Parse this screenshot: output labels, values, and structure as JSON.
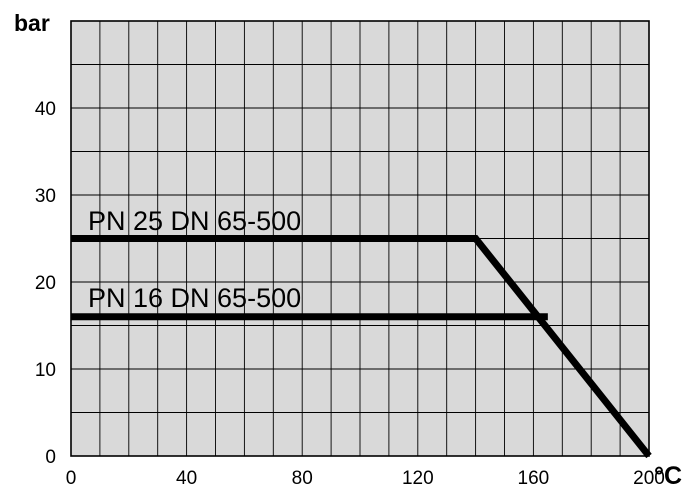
{
  "chart_data": {
    "type": "line",
    "xlabel": "°C",
    "ylabel": "bar",
    "xlim": [
      0,
      200
    ],
    "ylim": [
      0,
      50
    ],
    "x_ticks": [
      0,
      40,
      80,
      120,
      160,
      200
    ],
    "y_ticks": [
      0,
      10,
      20,
      30,
      40
    ],
    "x_tick_labels": [
      "0",
      "40",
      "80",
      "120",
      "160",
      "200"
    ],
    "y_tick_labels": [
      "0",
      "10",
      "20",
      "30",
      "40"
    ],
    "grid": true,
    "x_minor_step": 10,
    "y_minor_step": 5,
    "series": [
      {
        "name": "PN 25  DN 65-500",
        "x": [
          0,
          140,
          200
        ],
        "y": [
          25,
          25,
          0
        ]
      },
      {
        "name": "PN 16  DN 65-500",
        "x": [
          0,
          165
        ],
        "y": [
          16,
          16
        ]
      }
    ],
    "colors": {
      "plot_background": "#d9d9d9",
      "grid": "#000000",
      "line": "#000000"
    }
  }
}
